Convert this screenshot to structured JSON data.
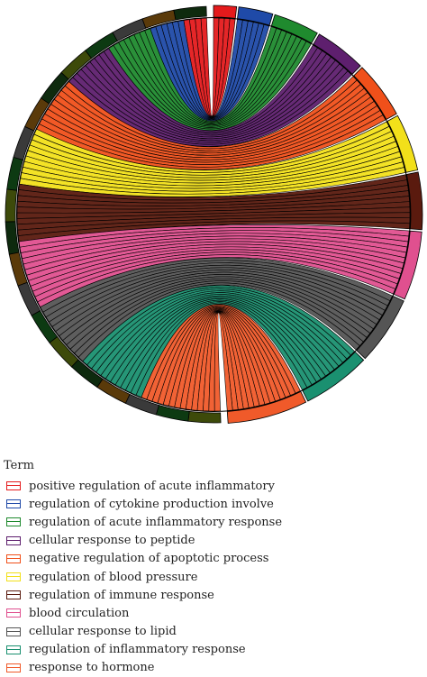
{
  "legend": {
    "title": "Term",
    "items": [
      {
        "label": "positive regulation of acute inflammatory",
        "color": "#e41a1c"
      },
      {
        "label": "regulation of cytokine production involve",
        "color": "#1f4aa8"
      },
      {
        "label": "regulation of acute inflammatory response",
        "color": "#1f8a2e"
      },
      {
        "label": "cellular response to peptide",
        "color": "#5e1f6e"
      },
      {
        "label": "negative regulation of apoptotic process",
        "color": "#f0501a"
      },
      {
        "label": "regulation of blood pressure",
        "color": "#f2e01a"
      },
      {
        "label": "regulation of immune response",
        "color": "#5a1a0e"
      },
      {
        "label": "blood circulation",
        "color": "#e0508f"
      },
      {
        "label": "cellular response to lipid",
        "color": "#555555"
      },
      {
        "label": "regulation of inflammatory response",
        "color": "#1a9070"
      },
      {
        "label": "response to hormone",
        "color": "#f05a2a"
      }
    ]
  },
  "chart_data": {
    "type": "chord",
    "terms": [
      "positive regulation of acute inflammatory",
      "regulation of cytokine production involve",
      "regulation of acute inflammatory response",
      "cellular response to peptide",
      "negative regulation of apoptotic process",
      "regulation of blood pressure",
      "regulation of immune response",
      "blood circulation",
      "cellular response to lipid",
      "regulation of inflammatory response",
      "response to hormone"
    ],
    "term_gene_counts": [
      4,
      6,
      8,
      9,
      10,
      10,
      10,
      12,
      12,
      12,
      14
    ],
    "gene_count": 20,
    "ring": "outer"
  }
}
